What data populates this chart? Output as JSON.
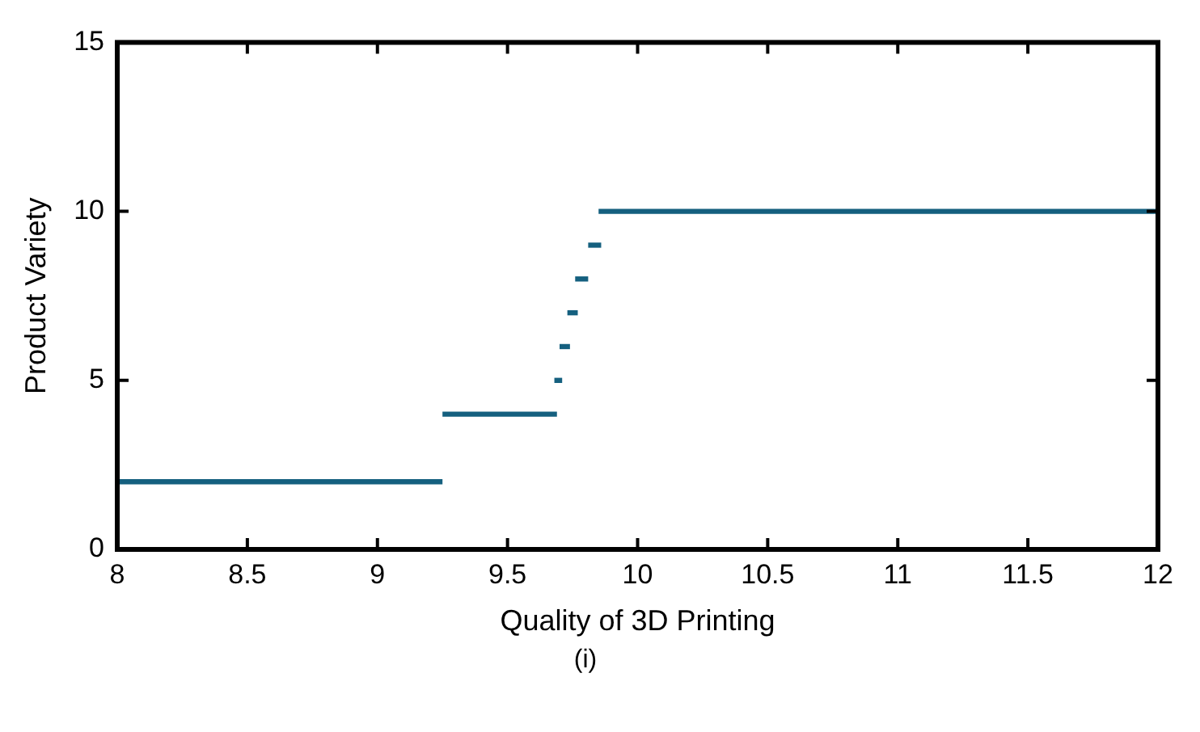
{
  "chart_data": {
    "type": "line",
    "xlabel": "Quality of 3D Printing",
    "ylabel": "Product Variety",
    "xlim": [
      8,
      12
    ],
    "xticks": [
      8,
      8.5,
      9,
      9.5,
      10,
      10.5,
      11,
      11.5,
      12
    ],
    "ylim": [
      0,
      15
    ],
    "yticks": [
      0,
      5,
      10,
      15
    ],
    "grid": false,
    "legend": false,
    "marker": "none",
    "line_style": "solid",
    "series": [
      {
        "color": "#15607f",
        "x": [
          8,
          9.25
        ],
        "values": [
          2,
          2
        ]
      },
      {
        "color": "#15607f",
        "x": [
          9.25,
          9.69
        ],
        "values": [
          4,
          4
        ]
      },
      {
        "color": "#15607f",
        "x": [
          9.68,
          9.71
        ],
        "values": [
          5,
          5
        ]
      },
      {
        "color": "#15607f",
        "x": [
          9.7,
          9.74
        ],
        "values": [
          6,
          6
        ]
      },
      {
        "color": "#15607f",
        "x": [
          9.73,
          9.77
        ],
        "values": [
          7,
          7
        ]
      },
      {
        "color": "#15607f",
        "x": [
          9.76,
          9.81
        ],
        "values": [
          8,
          8
        ]
      },
      {
        "color": "#15607f",
        "x": [
          9.81,
          9.86
        ],
        "values": [
          9,
          9
        ]
      },
      {
        "color": "#15607f",
        "x": [
          9.85,
          12
        ],
        "values": [
          10,
          10
        ]
      }
    ],
    "annotations": [
      "(i)"
    ]
  }
}
